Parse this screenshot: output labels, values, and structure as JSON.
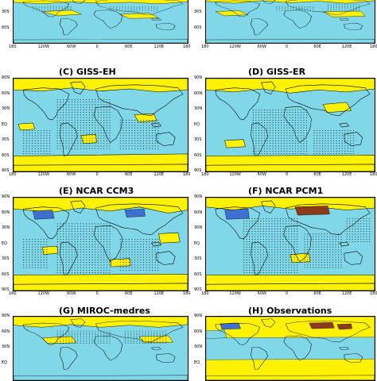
{
  "colors": {
    "ocean_cyan": "#7fd7e8",
    "positive_yellow": "#fff200",
    "cold_blue": "#3f6fd1",
    "warm_brown": "#8b3a1a",
    "coastline": "#000000",
    "stipple": "#000000"
  },
  "axes": {
    "lon_ticks": [
      "180",
      "120W",
      "60W",
      "0",
      "60E",
      "120E",
      "180"
    ],
    "lat_ticks": [
      "90N",
      "60N",
      "30N",
      "EQ",
      "30S",
      "60S",
      "90S"
    ]
  },
  "panels": [
    {
      "id": "A",
      "label": "",
      "partial": true
    },
    {
      "id": "B",
      "label": "",
      "partial": true
    },
    {
      "id": "C",
      "label": "(C)  GISS-EH"
    },
    {
      "id": "D",
      "label": "(D)  GISS-ER"
    },
    {
      "id": "E",
      "label": "(E)  NCAR CCM3"
    },
    {
      "id": "F",
      "label": "(F)  NCAR PCM1"
    },
    {
      "id": "G",
      "label": "(G)  MIROC-medres"
    },
    {
      "id": "H",
      "label": "(H)  Observations"
    }
  ]
}
